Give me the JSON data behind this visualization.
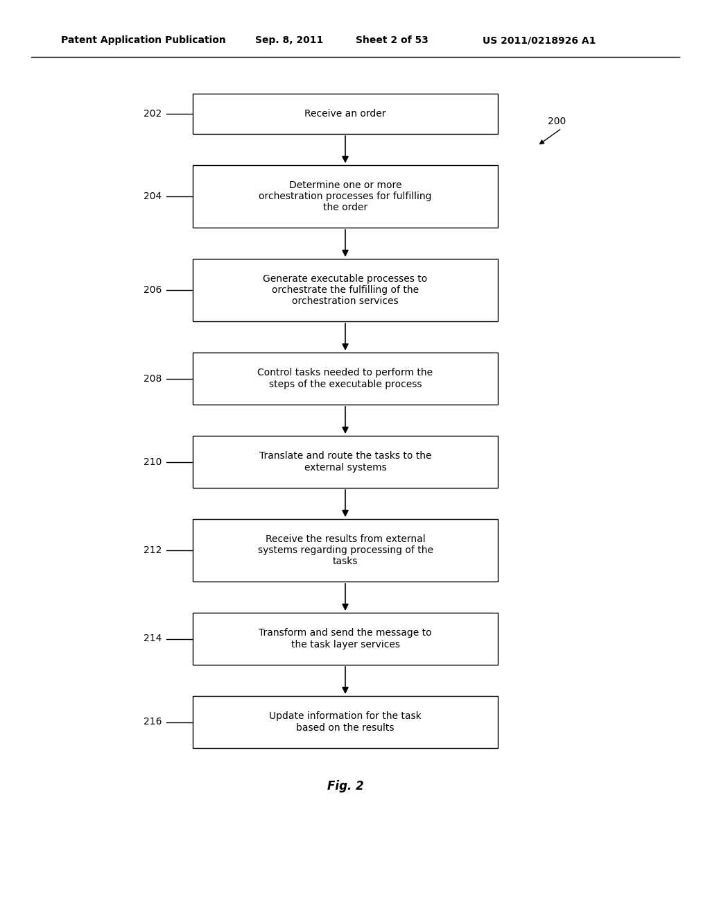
{
  "title_line1": "Patent Application Publication",
  "title_date": "Sep. 8, 2011",
  "title_sheet": "Sheet 2 of 53",
  "title_patent": "US 2011/0218926 A1",
  "fig_label": "Fig. 2",
  "ref_200": "200",
  "box_ids": [
    "202",
    "204",
    "206",
    "208",
    "210",
    "212",
    "214",
    "216"
  ],
  "box_labels": [
    "Receive an order",
    "Determine one or more\norchestration processes for fulfilling\nthe order",
    "Generate executable processes to\norchestrate the fulfilling of the\norchestration services",
    "Control tasks needed to perform the\nsteps of the executable process",
    "Translate and route the tasks to the\nexternal systems",
    "Receive the results from external\nsystems regarding processing of the\ntasks",
    "Transform and send the message to\nthe task layer services",
    "Update information for the task\nbased on the results"
  ],
  "box_color": "#ffffff",
  "box_edge_color": "#000000",
  "arrow_color": "#000000",
  "text_color": "#000000",
  "bg_color": "#ffffff",
  "font_size": 10,
  "header_font_size": 10
}
